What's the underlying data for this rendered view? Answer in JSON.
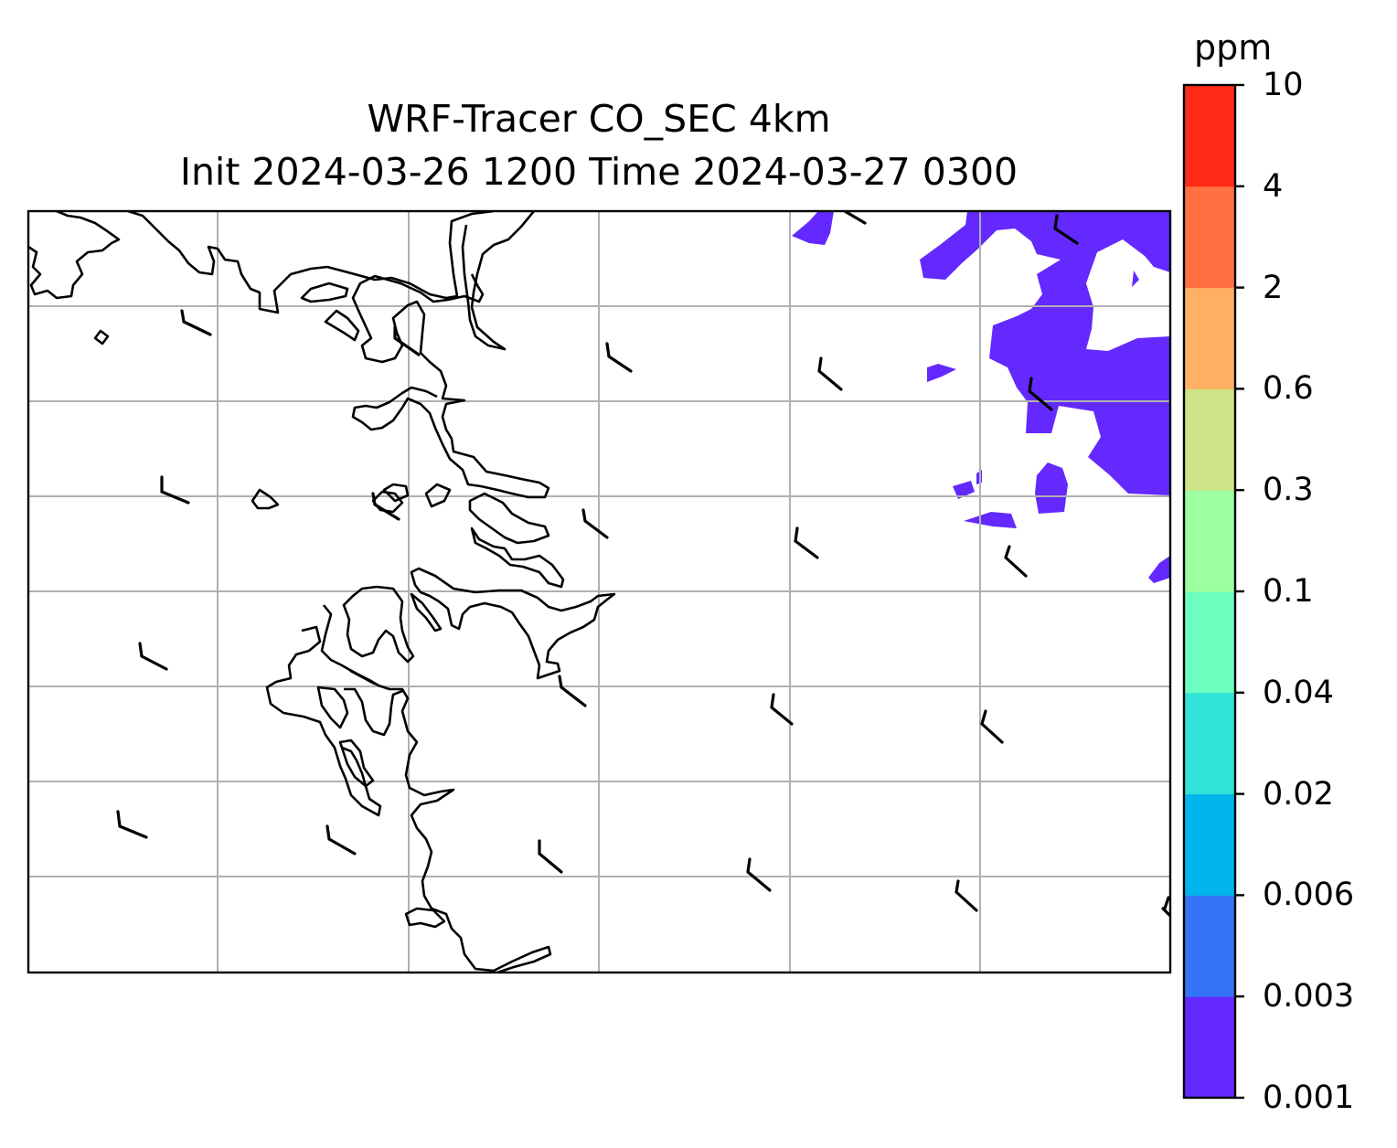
{
  "title_line_1": "WRF-Tracer CO_SEC 4km",
  "title_line_2": "Init 2024-03-26 1200 Time 2024-03-27 0300",
  "colorbar": {
    "units": "ppm",
    "levels": [
      "0.001",
      "0.003",
      "0.006",
      "0.02",
      "0.04",
      "0.1",
      "0.3",
      "0.6",
      "2",
      "4",
      "10"
    ],
    "colors": [
      "#6329ff",
      "#3474f5",
      "#00b4ec",
      "#31e2d6",
      "#6affbe",
      "#9cffa0",
      "#cde386",
      "#ffb062",
      "#ff7141",
      "#ff2a17"
    ]
  },
  "map": {
    "coastline_color": "#000000",
    "gridline_color": "#b0b0b0",
    "tracer_fill_level": "0.001-0.003 ppm",
    "wind_barb_color": "#000000"
  }
}
